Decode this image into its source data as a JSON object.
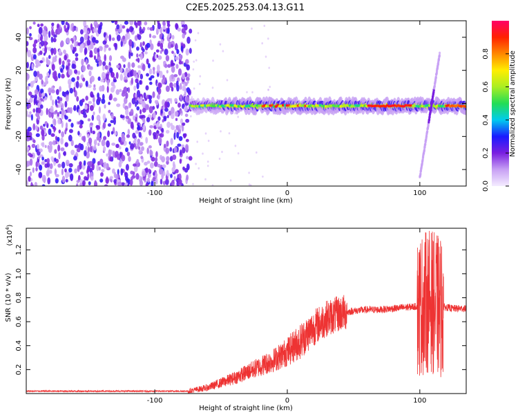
{
  "title": "C2E5.2025.253.04.13.G11",
  "chart_data": [
    {
      "type": "heatmap",
      "xlabel": "Height of straight line (km)",
      "ylabel": "Frequency (Hz)",
      "xlim": [
        -197,
        135
      ],
      "ylim": [
        -50,
        50
      ],
      "xticks": [
        -100,
        0,
        100
      ],
      "yticks": [
        -40,
        -20,
        0,
        20,
        40
      ],
      "colorbar": {
        "label": "Normalized spectral amplitude",
        "range": [
          0,
          1
        ],
        "ticks": [
          0.0,
          0.2,
          0.4,
          0.6,
          0.8
        ],
        "stops": [
          "#f4ecff",
          "#c7a0f4",
          "#7a1fe0",
          "#1a1aff",
          "#00ccee",
          "#22dd55",
          "#aaee22",
          "#ffee00",
          "#ff8800",
          "#ff2200",
          "#ff0066"
        ]
      },
      "noise_region_x": [
        -197,
        -73
      ],
      "band": {
        "x": [
          -73,
          135
        ],
        "center_hz": -1.5
      },
      "chirp": {
        "x": [
          100,
          115
        ],
        "freq_range_hz": [
          -45,
          30
        ]
      }
    },
    {
      "type": "line",
      "xlabel": "Height of straight line (km)",
      "ylabel": "SNR (10 * v/v)",
      "yscale_label": "(x10",
      "yscale_exp": "4",
      "xlim": [
        -197,
        135
      ],
      "ylim": [
        0,
        1.38
      ],
      "xticks": [
        -100,
        0,
        100
      ],
      "yticks": [
        0.2,
        0.4,
        0.6,
        0.8,
        1.0,
        1.2
      ],
      "color": "#ee3333",
      "trend": {
        "x": [
          -197,
          -75,
          -70,
          -60,
          -50,
          -40,
          -30,
          -20,
          -10,
          0,
          10,
          20,
          30,
          40,
          50,
          60,
          70,
          80,
          90,
          100,
          104,
          108,
          112,
          116,
          120,
          125,
          135
        ],
        "y": [
          0.02,
          0.02,
          0.03,
          0.05,
          0.09,
          0.13,
          0.18,
          0.23,
          0.28,
          0.35,
          0.44,
          0.55,
          0.63,
          0.67,
          0.69,
          0.7,
          0.7,
          0.71,
          0.72,
          0.73,
          0.76,
          0.78,
          0.74,
          0.72,
          0.72,
          0.71,
          0.71
        ]
      }
    }
  ]
}
